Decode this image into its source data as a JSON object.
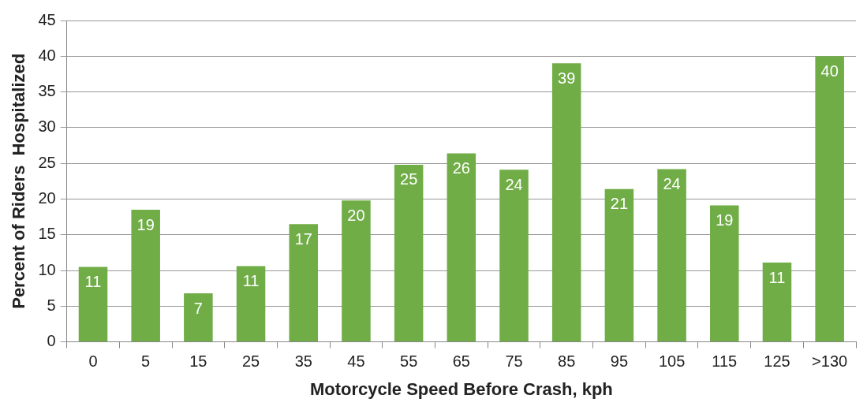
{
  "chart_data": {
    "type": "bar",
    "xlabel": "Motorcycle Speed Before Crash, kph",
    "ylabel": "Percent of Riders  Hospitalized",
    "categories": [
      "0",
      "5",
      "15",
      "25",
      "35",
      "45",
      "55",
      "65",
      "75",
      "85",
      "95",
      "105",
      "115",
      "125",
      ">130"
    ],
    "values": [
      10.5,
      18.5,
      6.8,
      10.6,
      16.5,
      19.8,
      24.8,
      26.4,
      24.1,
      39,
      21.4,
      24.2,
      19.1,
      11.1,
      40
    ],
    "value_labels": [
      "11",
      "19",
      "7",
      "11",
      "17",
      "20",
      "25",
      "26",
      "24",
      "39",
      "21",
      "24",
      "19",
      "11",
      "40"
    ],
    "color": "#70ad47",
    "ylim": [
      0,
      45
    ],
    "yticks": [
      0,
      5,
      10,
      15,
      20,
      25,
      30,
      35,
      40,
      45
    ],
    "grid": "y",
    "legend": false
  }
}
